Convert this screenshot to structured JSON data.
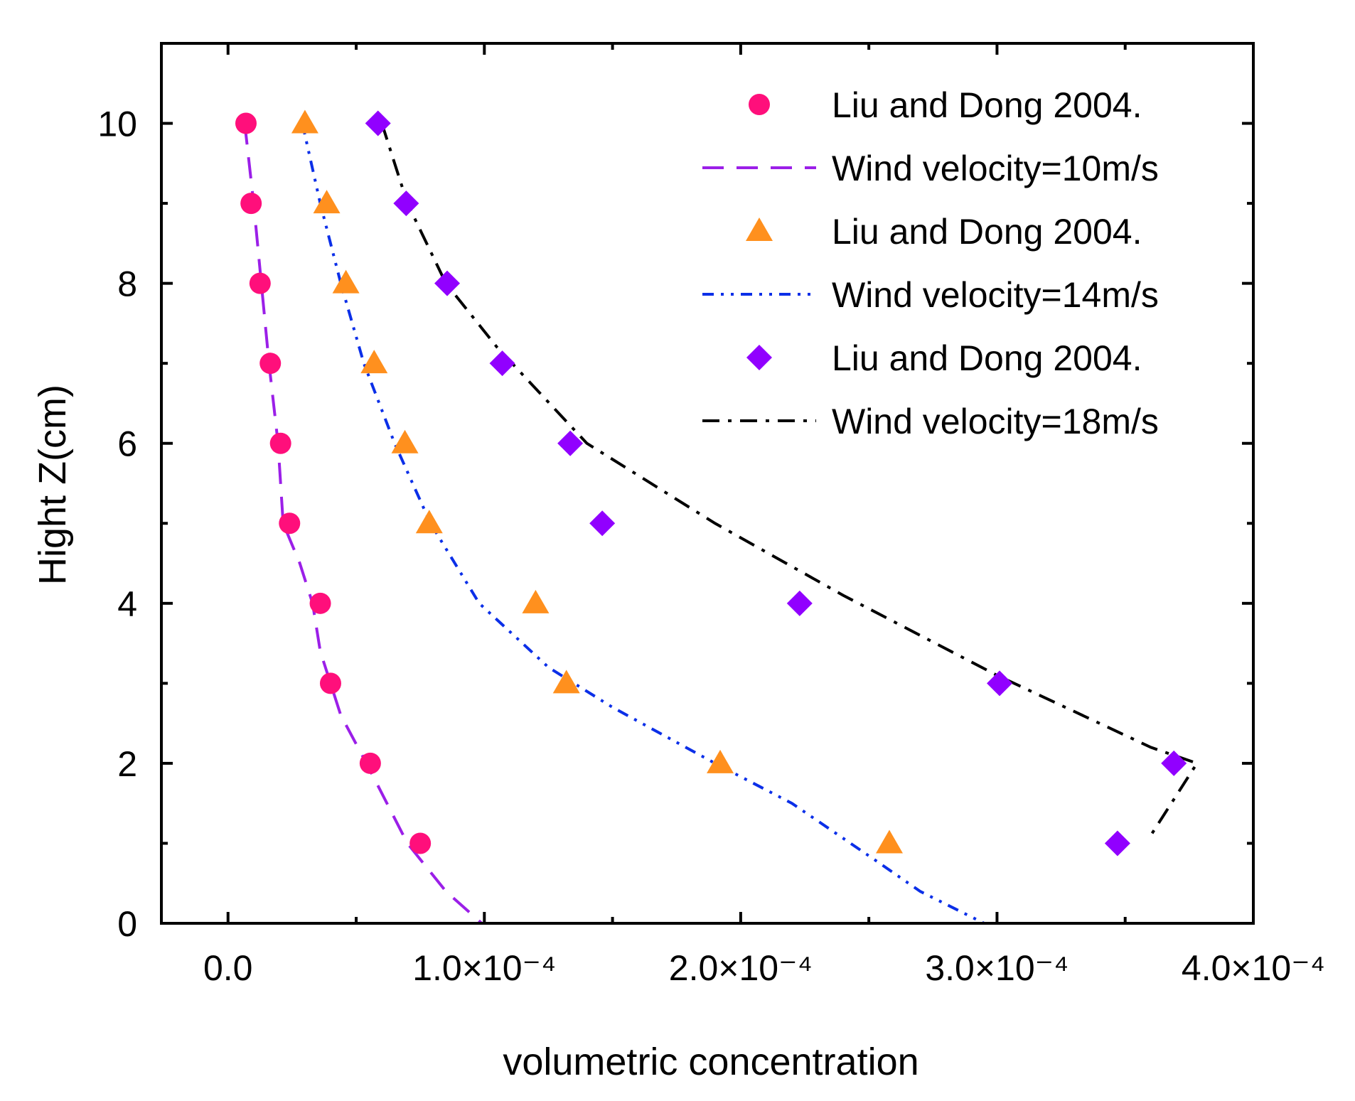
{
  "chart_data": {
    "type": "scatter",
    "xlabel": "volumetric concentration",
    "ylabel": "Hight Z(cm)",
    "xlim": [
      -2.6e-05,
      0.0004
    ],
    "ylim": [
      0,
      11
    ],
    "x_ticks": [
      {
        "value": 0.0,
        "label": "0.0"
      },
      {
        "value": 0.0001,
        "label": "1.0×10⁻⁴"
      },
      {
        "value": 0.0002,
        "label": "2.0×10⁻⁴"
      },
      {
        "value": 0.0003,
        "label": "3.0×10⁻⁴"
      },
      {
        "value": 0.0004,
        "label": "4.0×10⁻⁴"
      }
    ],
    "y_ticks": [
      {
        "value": 0,
        "label": "0"
      },
      {
        "value": 2,
        "label": "2"
      },
      {
        "value": 4,
        "label": "4"
      },
      {
        "value": 6,
        "label": "6"
      },
      {
        "value": 8,
        "label": "8"
      },
      {
        "value": 10,
        "label": "10"
      }
    ],
    "legend_position": "top-right",
    "series": [
      {
        "name": "Liu and Dong 2004.",
        "kind": "scatter",
        "marker": "circle",
        "color": "#ff0f7b",
        "points": [
          {
            "x": 7e-06,
            "y": 10
          },
          {
            "x": 9e-06,
            "y": 9
          },
          {
            "x": 1.25e-05,
            "y": 8
          },
          {
            "x": 1.65e-05,
            "y": 7
          },
          {
            "x": 2.05e-05,
            "y": 6
          },
          {
            "x": 2.4e-05,
            "y": 5
          },
          {
            "x": 3.6e-05,
            "y": 4
          },
          {
            "x": 4e-05,
            "y": 3
          },
          {
            "x": 5.55e-05,
            "y": 2
          },
          {
            "x": 7.5e-05,
            "y": 1
          }
        ]
      },
      {
        "name": "Wind velocity=10m/s",
        "kind": "line",
        "dash": "dash",
        "color": "#9b1fe8",
        "points": [
          {
            "x": 6.5e-06,
            "y": 10
          },
          {
            "x": 1e-05,
            "y": 9
          },
          {
            "x": 1.3e-05,
            "y": 8
          },
          {
            "x": 1.6e-05,
            "y": 7
          },
          {
            "x": 1.95e-05,
            "y": 6
          },
          {
            "x": 2.15e-05,
            "y": 5
          },
          {
            "x": 2.8e-05,
            "y": 4.5
          },
          {
            "x": 3.3e-05,
            "y": 4
          },
          {
            "x": 3.6e-05,
            "y": 3.4
          },
          {
            "x": 4.4e-05,
            "y": 2.6
          },
          {
            "x": 5.4e-05,
            "y": 2
          },
          {
            "x": 7e-05,
            "y": 1
          },
          {
            "x": 8.5e-05,
            "y": 0.4
          },
          {
            "x": 9.9e-05,
            "y": 0
          }
        ]
      },
      {
        "name": "Liu and Dong 2004.",
        "kind": "scatter",
        "marker": "triangle",
        "color": "#ff901e",
        "points": [
          {
            "x": 3e-05,
            "y": 10
          },
          {
            "x": 3.85e-05,
            "y": 9
          },
          {
            "x": 4.6e-05,
            "y": 8
          },
          {
            "x": 5.7e-05,
            "y": 7
          },
          {
            "x": 6.9e-05,
            "y": 6
          },
          {
            "x": 7.85e-05,
            "y": 5
          },
          {
            "x": 0.00012,
            "y": 4
          },
          {
            "x": 0.000132,
            "y": 3
          },
          {
            "x": 0.000192,
            "y": 2
          },
          {
            "x": 0.000258,
            "y": 1
          }
        ]
      },
      {
        "name": "Wind velocity=14m/s",
        "kind": "line",
        "dash": "dash-dot-dot",
        "color": "#0b2fe8",
        "points": [
          {
            "x": 2.9e-05,
            "y": 10
          },
          {
            "x": 3.6e-05,
            "y": 9
          },
          {
            "x": 4.4e-05,
            "y": 8
          },
          {
            "x": 5.3e-05,
            "y": 7
          },
          {
            "x": 6.5e-05,
            "y": 6
          },
          {
            "x": 7.9e-05,
            "y": 5
          },
          {
            "x": 9.8e-05,
            "y": 4
          },
          {
            "x": 0.000125,
            "y": 3.2
          },
          {
            "x": 0.00015,
            "y": 2.7
          },
          {
            "x": 0.00019,
            "y": 2
          },
          {
            "x": 0.00022,
            "y": 1.5
          },
          {
            "x": 0.000252,
            "y": 0.8
          },
          {
            "x": 0.00027,
            "y": 0.4
          },
          {
            "x": 0.000295,
            "y": 0
          }
        ]
      },
      {
        "name": "Liu and Dong 2004.",
        "kind": "scatter",
        "marker": "diamond",
        "color": "#9100ff",
        "points": [
          {
            "x": 5.85e-05,
            "y": 10
          },
          {
            "x": 6.95e-05,
            "y": 9
          },
          {
            "x": 8.55e-05,
            "y": 8
          },
          {
            "x": 0.000107,
            "y": 7
          },
          {
            "x": 0.0001335,
            "y": 6
          },
          {
            "x": 0.000146,
            "y": 5
          },
          {
            "x": 0.000223,
            "y": 4
          },
          {
            "x": 0.000301,
            "y": 3
          },
          {
            "x": 0.000369,
            "y": 2
          },
          {
            "x": 0.000347,
            "y": 1
          }
        ]
      },
      {
        "name": "Wind velocity=18m/s",
        "kind": "line",
        "dash": "dash-dot",
        "color": "#000000",
        "points": [
          {
            "x": 6e-05,
            "y": 10
          },
          {
            "x": 7e-05,
            "y": 9
          },
          {
            "x": 8.5e-05,
            "y": 8
          },
          {
            "x": 0.000105,
            "y": 7.2
          },
          {
            "x": 0.00014,
            "y": 6
          },
          {
            "x": 0.00019,
            "y": 5
          },
          {
            "x": 0.00024,
            "y": 4.1
          },
          {
            "x": 0.0003,
            "y": 3.1
          },
          {
            "x": 0.00036,
            "y": 2.2
          },
          {
            "x": 0.000378,
            "y": 2
          },
          {
            "x": 0.00036,
            "y": 1.1
          }
        ]
      }
    ]
  }
}
